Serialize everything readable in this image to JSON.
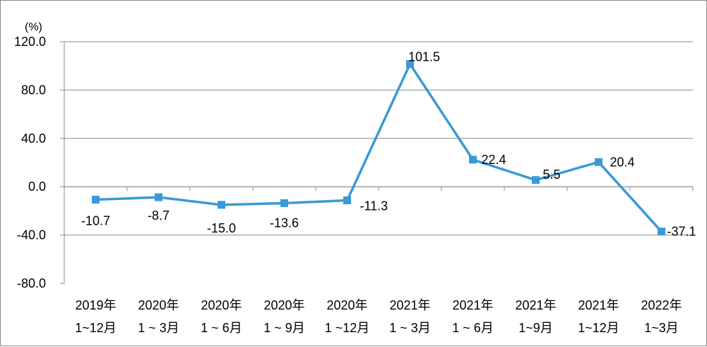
{
  "chart_data": {
    "type": "line",
    "unit_label": "(%)",
    "categories": [
      [
        "2019年",
        "1~12月"
      ],
      [
        "2020年",
        "1 ~ 3月"
      ],
      [
        "2020年",
        "1 ~ 6月"
      ],
      [
        "2020年",
        "1 ~ 9月"
      ],
      [
        "2020年",
        "1 ~12月"
      ],
      [
        "2021年",
        "1 ~ 3月"
      ],
      [
        "2021年",
        "1 ~ 6月"
      ],
      [
        "2021年",
        "1~9月"
      ],
      [
        "2021年",
        "1~12月"
      ],
      [
        "2022年",
        "1~3月"
      ]
    ],
    "values": [
      -10.7,
      -8.7,
      -15.0,
      -13.6,
      -11.3,
      101.5,
      22.4,
      5.5,
      20.4,
      -37.1
    ],
    "data_labels": [
      "-10.7",
      "-8.7",
      "-15.0",
      "-13.6",
      "-11.3",
      "101.5",
      "22.4",
      "5.5",
      "20.4",
      "-37.1"
    ],
    "y_ticks": [
      120,
      80,
      40,
      0,
      -40,
      -80
    ],
    "y_tick_labels": [
      "120.0",
      "80.0",
      "40.0",
      "0.0",
      "-40.0",
      "-80.0"
    ],
    "ylim": [
      -80,
      120
    ],
    "grid": true,
    "line_color": "#3a9ad6",
    "marker": "square",
    "legend": "none"
  }
}
